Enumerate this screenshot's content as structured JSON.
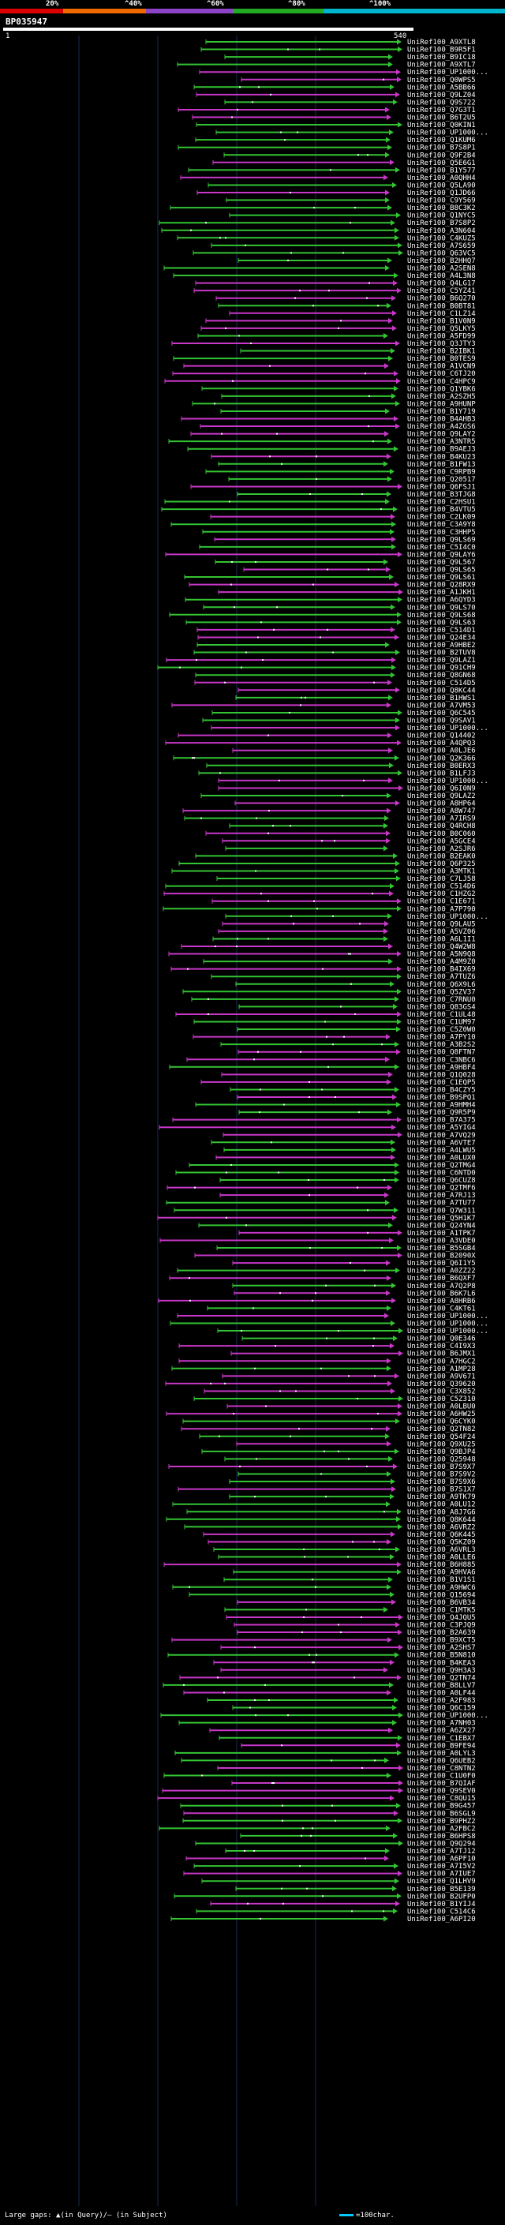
{
  "scale": {
    "labels": [
      "20%",
      "^40%",
      "^60%",
      "^80%",
      "^100%"
    ],
    "colors": [
      "#dd0000",
      "#ee6a00",
      "#8e44c8",
      "#22aa22",
      "#00b5cc"
    ]
  },
  "query": {
    "id": "BP035947",
    "start": "1",
    "end": "540"
  },
  "hit_colors": {
    "green": "#33c433",
    "magenta": "#c837c8",
    "cyan": "#1bb9d8",
    "white": "#ffffff"
  },
  "hit_labels": [
    "UniRef100_A9XTL8",
    "UniRef100_B9R5F1",
    "UniRef100_B9IC18",
    "UniRef100_A9XTL7",
    "UniRef100_UP1000...",
    "UniRef100_Q0WPS5",
    "UniRef100_A5BB66",
    "UniRef100_Q9LZ04",
    "UniRef100_Q9S722",
    "UniRef100_Q7G3T1",
    "UniRef100_B6T2U5",
    "UniRef100_Q0KIN1",
    "UniRef100_UP1000...",
    "UniRef100_Q1KUM6",
    "UniRef100_B7S8P1",
    "UniRef100_Q9F2B4",
    "UniRef100_Q5E6G1",
    "UniRef100_B1Y577",
    "UniRef100_A0QHH4",
    "UniRef100_Q5LA90",
    "UniRef100_Q1JD66",
    "UniRef100_C9Y569",
    "UniRef100_B8C3K2",
    "UniRef100_Q1NYC5",
    "UniRef100_B7S8P2",
    "UniRef100_A3N604",
    "UniRef100_C4KUZ5",
    "UniRef100_A7S659",
    "UniRef100_Q63VC5",
    "UniRef100_B2HHQ7",
    "UniRef100_A2SEN8",
    "UniRef100_A4L3N8",
    "UniRef100_Q4LG17",
    "UniRef100_C5YZ41",
    "UniRef100_B6Q270",
    "UniRef100_B0BT81",
    "UniRef100_C1LZ14",
    "UniRef100_B1V0N9",
    "UniRef100_Q5LKY5",
    "UniRef100_A5FD99",
    "UniRef100_Q3JTY3",
    "UniRef100_B2IBK1",
    "UniRef100_B0TES9",
    "UniRef100_A1VCN9",
    "UniRef100_C6TJ20",
    "UniRef100_C4HPC9",
    "UniRef100_Q1YBK6",
    "UniRef100_A2SZH5",
    "UniRef100_A9HUNP",
    "UniRef100_B1Y719",
    "UniRef100_B4AHB3",
    "UniRef100_A4ZGS6",
    "UniRef100_Q9LAY2",
    "UniRef100_A3NTR5",
    "UniRef100_B9AEJ3",
    "UniRef100_B4KU23",
    "UniRef100_B1FW13",
    "UniRef100_C9RPB9",
    "UniRef100_Q20517",
    "UniRef100_Q6FSJ1",
    "UniRef100_B3TJG8",
    "UniRef100_C2HSU1",
    "UniRef100_B4VTU5",
    "UniRef100_C2LK09",
    "UniRef100_C3A9Y8",
    "UniRef100_C3HHP5",
    "UniRef100_Q9LS69",
    "UniRef100_C5I4C0",
    "UniRef100_Q9LAY6",
    "UniRef100_Q9L567",
    "UniRef100_Q9LS65",
    "UniRef100_Q9LS61",
    "UniRef100_Q28RX9",
    "UniRef100_A1JKH1",
    "UniRef100_A6QYD3",
    "UniRef100_Q9LS70",
    "UniRef100_Q9LS68",
    "UniRef100_Q9LS63",
    "UniRef100_C514D1",
    "UniRef100_Q24E34",
    "UniRef100_A9HBE2",
    "UniRef100_B2TUV8",
    "UniRef100_Q9LAZ1",
    "UniRef100_Q91CH9",
    "UniRef100_Q8GN68",
    "UniRef100_C514D5",
    "UniRef100_Q8KC44",
    "UniRef100_B1HWS1",
    "UniRef100_A7VM53",
    "UniRef100_Q6C545",
    "UniRef100_Q9SAV1",
    "UniRef100_UP1000...",
    "UniRef100_Q14402",
    "UniRef100_A4QPQ3",
    "UniRef100_A0LJE6",
    "UniRef100_Q2K366",
    "UniRef100_B0ERX3",
    "UniRef100_B1LFJ3",
    "UniRef100_UP1000...",
    "UniRef100_Q6I0N9",
    "UniRef100_Q9LAZ2",
    "UniRef100_A8HP64",
    "UniRef100_A8W747",
    "UniRef100_A7IRS9",
    "UniRef100_Q4RCH8",
    "UniRef100_B0C060",
    "UniRef100_A5GCE4",
    "UniRef100_A2SJR6",
    "UniRef100_B2EAK0",
    "UniRef100_Q6P325",
    "UniRef100_A3MTK1",
    "UniRef100_C7LJ58",
    "UniRef100_C514D6",
    "UniRef100_C1HZG2",
    "UniRef100_C1E671",
    "UniRef100_A7P790",
    "UniRef100_UP1000...",
    "UniRef100_Q9LAU5",
    "UniRef100_A5VZ06",
    "UniRef100_A6L1I1",
    "UniRef100_Q4W2W8",
    "UniRef100_A5N9Q8",
    "UniRef100_A4M9Z0",
    "UniRef100_B4IX69",
    "UniRef100_A7TUZ6",
    "UniRef100_Q6X9L6",
    "UniRef100_Q5ZV37",
    "UniRef100_C7RNU0",
    "UniRef100_Q83GS4",
    "UniRef100_C1UL48",
    "UniRef100_C1UM97",
    "UniRef100_C5Z0W0",
    "UniRef100_A7PY10",
    "UniRef100_A3B2S2",
    "UniRef100_Q8FTN7",
    "UniRef100_C3NBC6",
    "UniRef100_A9HBF4",
    "UniRef100_Q1Q028",
    "UniRef100_C1EQP5",
    "UniRef100_B4CZY5",
    "UniRef100_B9SPQ1",
    "UniRef100_A9HMH4",
    "UniRef100_Q9R5P9",
    "UniRef100_B7A375",
    "UniRef100_A5YIG4",
    "UniRef100_A7VQ29",
    "UniRef100_A6VTE7",
    "UniRef100_A4LWU5",
    "UniRef100_A0LUX0",
    "UniRef100_Q2TMG4",
    "UniRef100_C6NTD0",
    "UniRef100_Q6CUZ8",
    "UniRef100_Q2TMF6",
    "UniRef100_A7RJ13",
    "UniRef100_A7TU77",
    "UniRef100_Q7W311",
    "UniRef100_Q5H1K7",
    "UniRef100_Q24YN4",
    "UniRef100_A1TPK7",
    "UniRef100_A3VDE0",
    "UniRef100_B5SGB4",
    "UniRef100_B2090X",
    "UniRef100_Q6I1Y5",
    "UniRef100_A0ZZ22",
    "UniRef100_B6QXF7",
    "UniRef100_A7Q2P8",
    "UniRef100_B6K7L6",
    "UniRef100_A8HRB6",
    "UniRef100_C4KT61",
    "UniRef100_UP1000...",
    "UniRef100_UP1000...",
    "UniRef100_UP1000...",
    "UniRef100_Q0E346",
    "UniRef100_C4I9X3",
    "UniRef100_B6JMX1",
    "UniRef100_A7HGC2",
    "UniRef100_A1MP28",
    "UniRef100_A9V671",
    "UniRef100_Q39620",
    "UniRef100_C3X852",
    "UniRef100_C5Z310",
    "UniRef100_A0LBU0",
    "UniRef100_A6HW25",
    "UniRef100_Q6CYK0",
    "UniRef100_Q2TN82",
    "UniRef100_Q54F24",
    "UniRef100_Q9XU25",
    "UniRef100_Q9BJP4",
    "UniRef100_Q25948",
    "UniRef100_B7S9X7",
    "UniRef100_B7S9V2",
    "UniRef100_B7S9X6",
    "UniRef100_B7S1X7",
    "UniRef100_A9TK79",
    "UniRef100_A0LU12",
    "UniRef100_A8J7G6",
    "UniRef100_Q8K644",
    "UniRef100_A6VRZ2",
    "UniRef100_Q6K445",
    "UniRef100_Q5KZ09",
    "UniRef100_A6VRL3",
    "UniRef100_A0LLE6",
    "UniRef100_B6H885",
    "UniRef100_A9HVA6",
    "UniRef100_B1V1S1",
    "UniRef100_A9HWC6",
    "UniRef100_Q15694",
    "UniRef100_B6VB34",
    "UniRef100_C1MTK5",
    "UniRef100_Q4JQU5",
    "UniRef100_C3PJQ9",
    "UniRef100_B2A639",
    "UniRef100_B9XCT5",
    "UniRef100_A2SHS7",
    "UniRef100_B5N810",
    "UniRef100_B4KEA3",
    "UniRef100_Q9H3A3",
    "UniRef100_Q2TN74",
    "UniRef100_B8LLV7",
    "UniRef100_A0LF44",
    "UniRef100_A2F983",
    "UniRef100_Q6C159",
    "UniRef100_UP1000...",
    "UniRef100_A7NH03",
    "UniRef100_A6ZX27",
    "UniRef100_C1EBX7",
    "UniRef100_B9FE94",
    "UniRef100_A0LYL3",
    "UniRef100_Q6UEB2",
    "UniRef100_C8NTN2",
    "UniRef100_C1U0F0",
    "UniRef100_B7QIAF",
    "UniRef100_Q9SEV0",
    "UniRef100_C8QU15",
    "UniRef100_B9G457",
    "UniRef100_B6SGL9",
    "UniRef100_B9PHZ2",
    "UniRef100_A2FBC2",
    "UniRef100_B6HPS8",
    "UniRef100_Q9Q294",
    "UniRef100_A7TJ12",
    "UniRef100_A6PF10",
    "UniRef100_A7I5V2",
    "UniRef100_A7IUE7",
    "UniRef100_Q1LHV9",
    "UniRef100_B5E139",
    "UniRef100_B2UFP0",
    "UniRef100_B1YIJ4",
    "UniRef100_C514C6",
    "UniRef100_A6PI20"
  ],
  "legend": {
    "left": "Large gaps: ▲(in Query)/— (in Subject)",
    "right": "=100char."
  }
}
